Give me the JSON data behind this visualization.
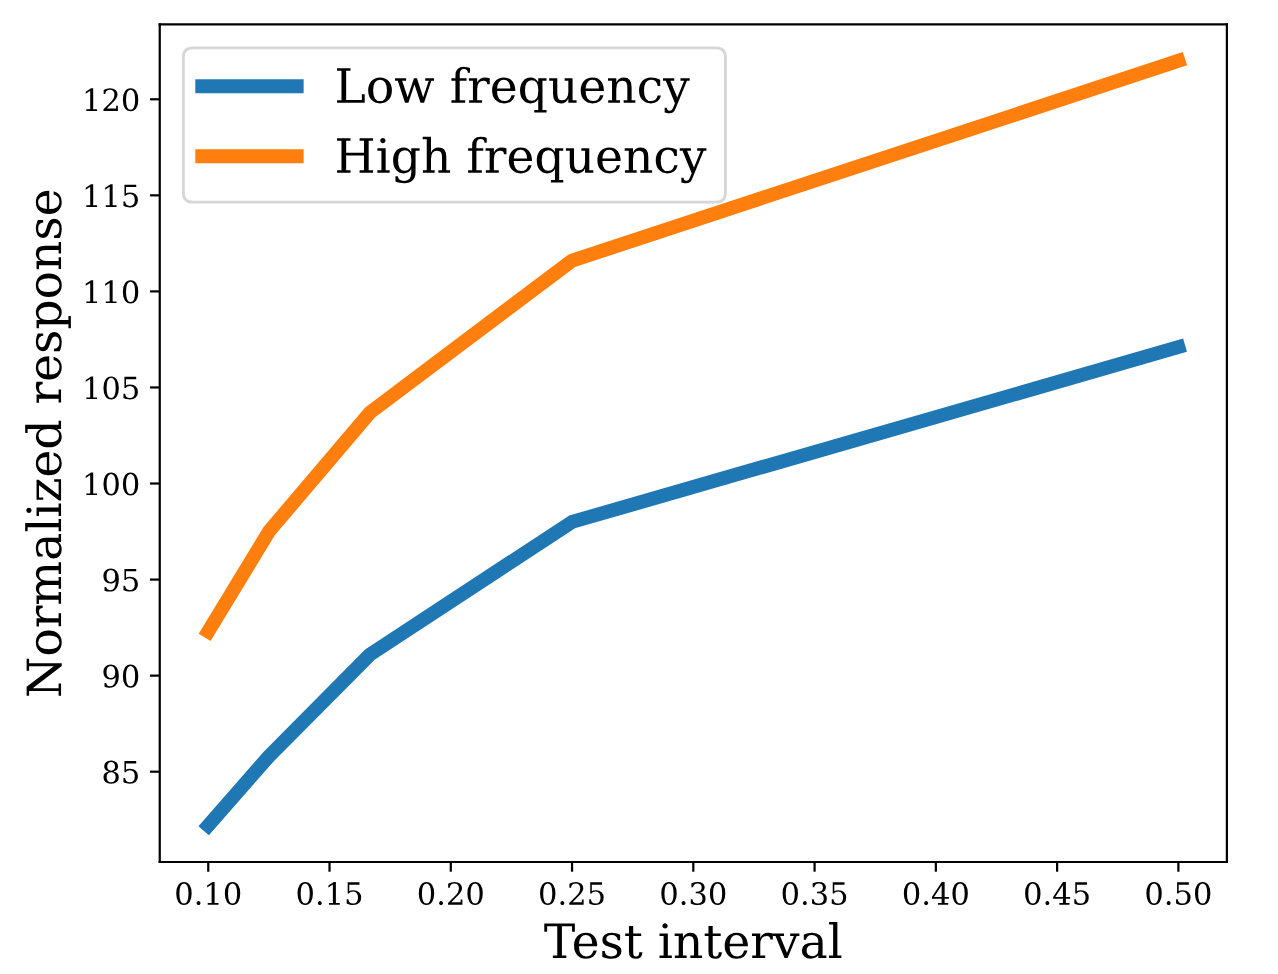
{
  "chart_data": {
    "type": "line",
    "xlabel": "Test interval",
    "ylabel": "Normalized response",
    "x": [
      0.1,
      0.125,
      0.1667,
      0.25,
      0.5
    ],
    "series": [
      {
        "name": "Low frequency",
        "color": "#1f77b4",
        "values": [
          82.2,
          85.8,
          91.1,
          98.0,
          107.1
        ]
      },
      {
        "name": "High frequency",
        "color": "#ff7f0e",
        "values": [
          92.3,
          97.5,
          103.7,
          111.6,
          122.0
        ]
      }
    ],
    "xlim": [
      0.08,
      0.52
    ],
    "ylim": [
      80.3,
      123.9
    ],
    "xticks": [
      {
        "value": 0.1,
        "label": "0.10"
      },
      {
        "value": 0.15,
        "label": "0.15"
      },
      {
        "value": 0.2,
        "label": "0.20"
      },
      {
        "value": 0.25,
        "label": "0.25"
      },
      {
        "value": 0.3,
        "label": "0.30"
      },
      {
        "value": 0.35,
        "label": "0.35"
      },
      {
        "value": 0.4,
        "label": "0.40"
      },
      {
        "value": 0.45,
        "label": "0.45"
      },
      {
        "value": 0.5,
        "label": "0.50"
      }
    ],
    "yticks": [
      85,
      90,
      95,
      100,
      105,
      110,
      115,
      120
    ],
    "legend": "top left",
    "grid": false,
    "line_style": "solid"
  }
}
